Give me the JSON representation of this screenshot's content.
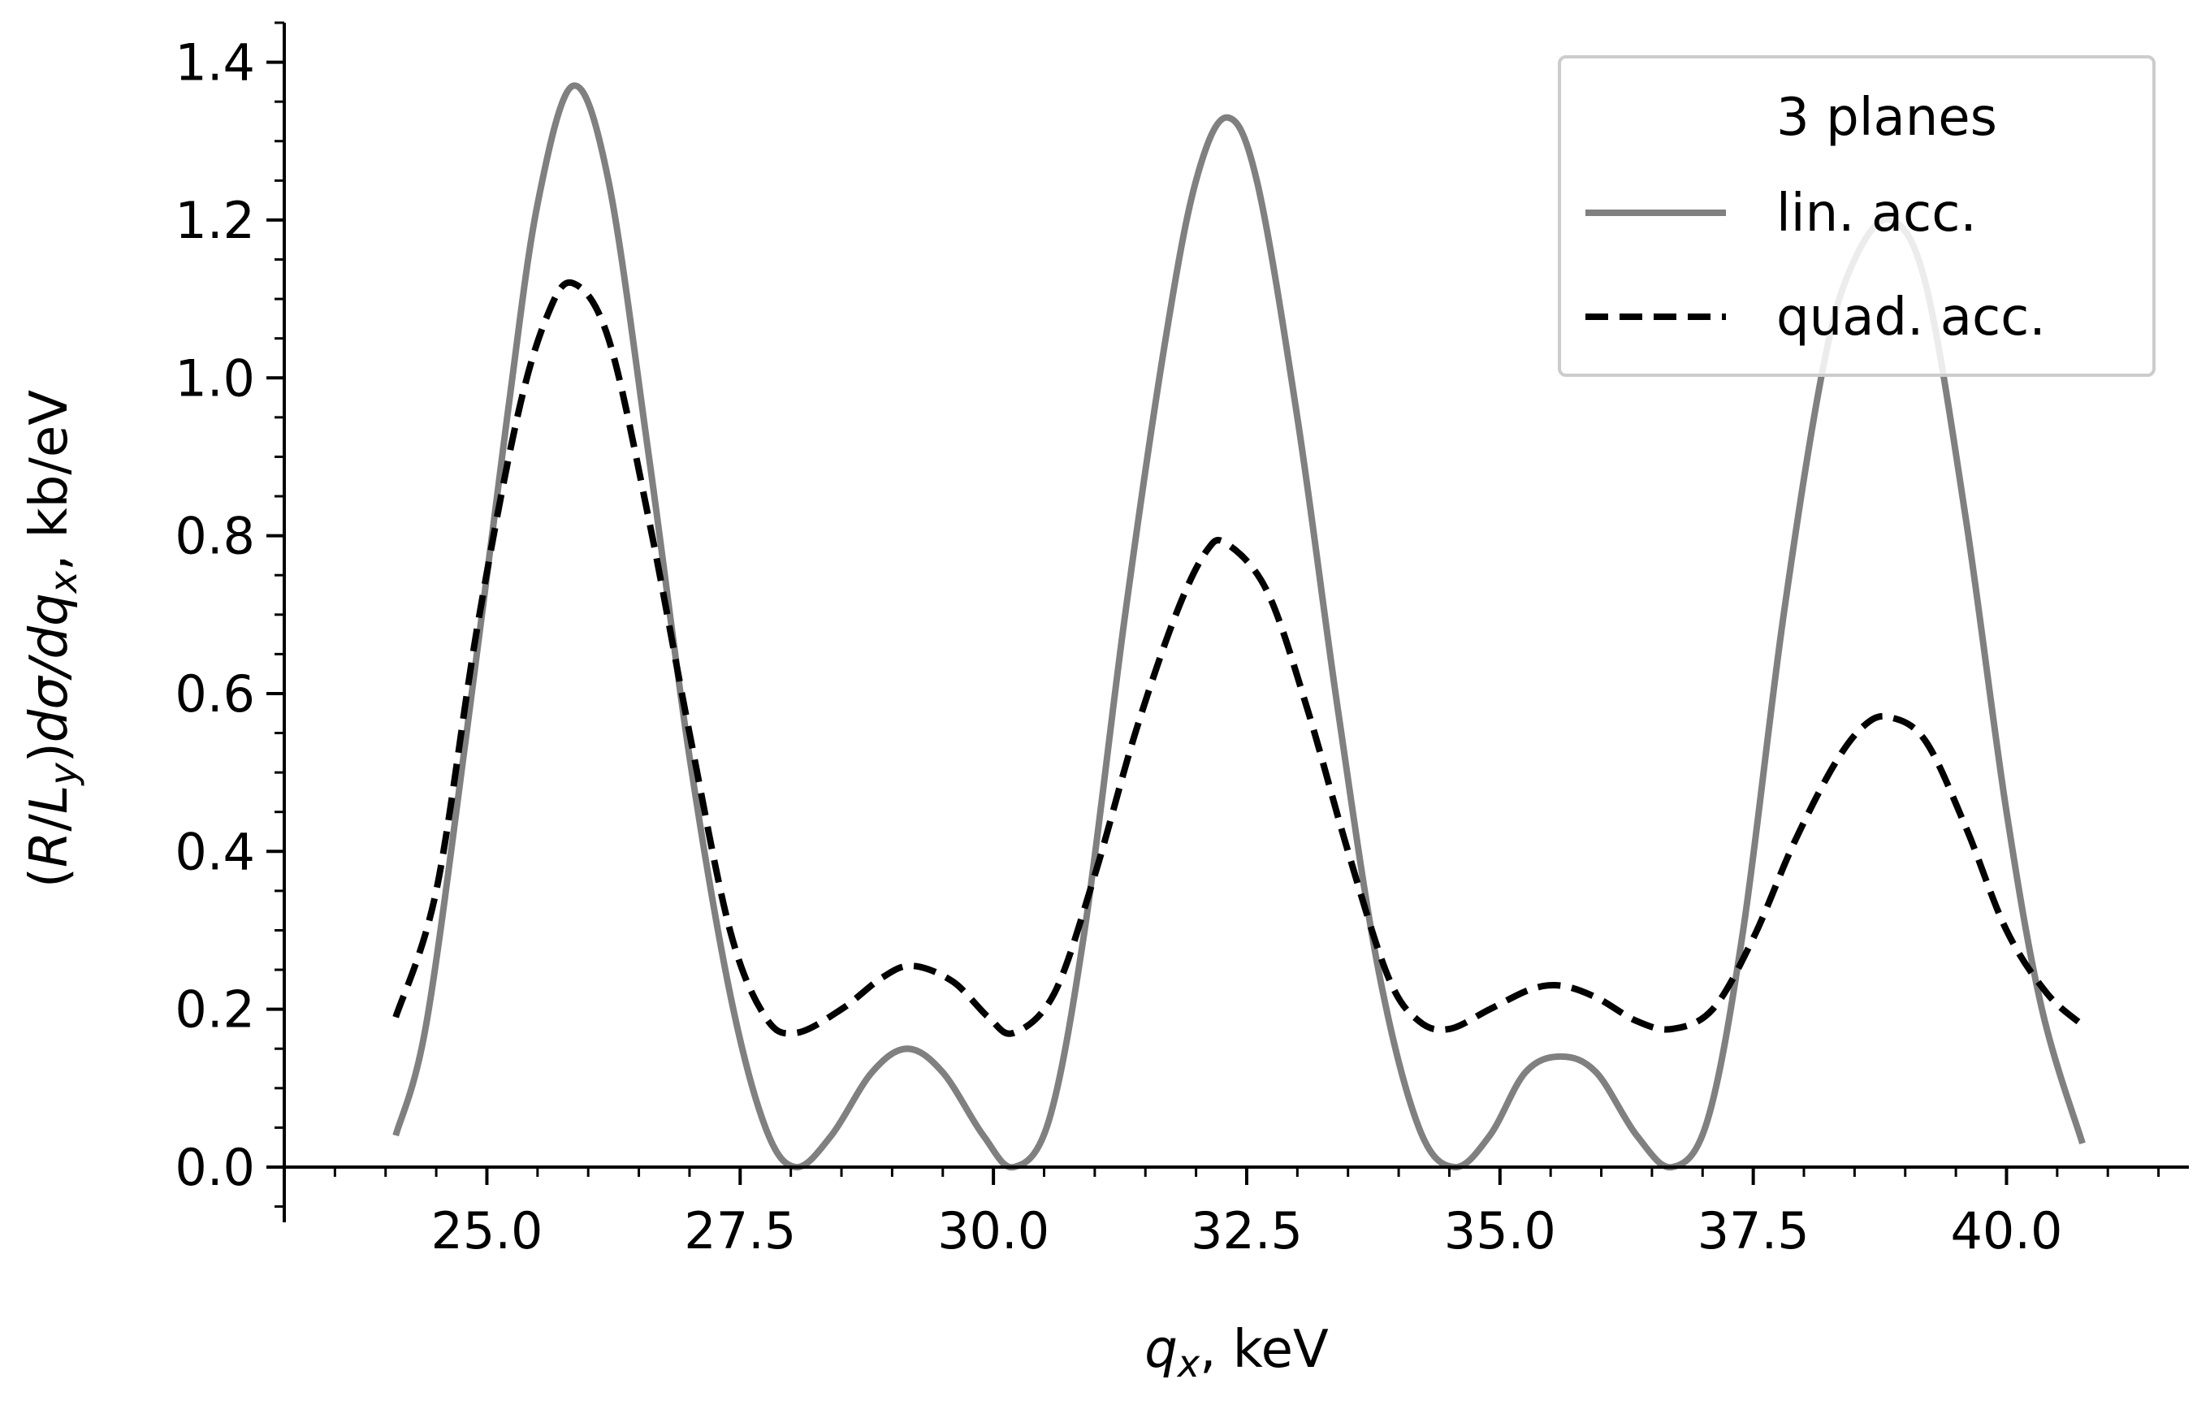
{
  "chart_data": {
    "type": "line",
    "title": "",
    "xlabel": {
      "var": "q",
      "sub": "x",
      "rest": ", keV"
    },
    "ylabel": {
      "parts": [
        {
          "t": "(",
          "s": "n"
        },
        {
          "t": "R",
          "s": "i"
        },
        {
          "t": "/",
          "s": "n"
        },
        {
          "t": "L",
          "s": "i"
        },
        {
          "t": "y",
          "s": "sub"
        },
        {
          "t": ")",
          "s": "n"
        },
        {
          "t": "dσ/dq",
          "s": "i"
        },
        {
          "t": "x",
          "s": "sub"
        },
        {
          "t": ", kb/eV",
          "s": "n"
        }
      ]
    },
    "xlim": [
      23.0,
      41.8
    ],
    "ylim": [
      -0.07,
      1.45
    ],
    "x_ticks": [
      25.0,
      27.5,
      30.0,
      32.5,
      35.0,
      37.5,
      40.0
    ],
    "x_tick_labels": [
      "25.0",
      "27.5",
      "30.0",
      "32.5",
      "35.0",
      "37.5",
      "40.0"
    ],
    "y_ticks": [
      0.0,
      0.2,
      0.4,
      0.6,
      0.8,
      1.0,
      1.2,
      1.4
    ],
    "y_tick_labels": [
      "0.0",
      "0.2",
      "0.4",
      "0.6",
      "0.8",
      "1.0",
      "1.2",
      "1.4"
    ],
    "grid": false,
    "legend": {
      "placement": "top-right",
      "title": "3 planes",
      "entries": [
        "lin. acc.",
        "quad. acc."
      ]
    },
    "series": [
      {
        "name": "lin. acc.",
        "color": "#808080",
        "style": "solid",
        "points": [
          [
            24.1,
            0.04
          ],
          [
            24.4,
            0.18
          ],
          [
            24.8,
            0.55
          ],
          [
            25.2,
            0.95
          ],
          [
            25.5,
            1.22
          ],
          [
            25.85,
            1.37
          ],
          [
            26.2,
            1.25
          ],
          [
            26.6,
            0.9
          ],
          [
            27.0,
            0.52
          ],
          [
            27.4,
            0.22
          ],
          [
            27.75,
            0.05
          ],
          [
            28.05,
            0.0
          ],
          [
            28.4,
            0.04
          ],
          [
            28.8,
            0.12
          ],
          [
            29.15,
            0.15
          ],
          [
            29.5,
            0.12
          ],
          [
            29.9,
            0.04
          ],
          [
            30.2,
            0.0
          ],
          [
            30.55,
            0.06
          ],
          [
            30.9,
            0.3
          ],
          [
            31.3,
            0.7
          ],
          [
            31.7,
            1.05
          ],
          [
            32.0,
            1.25
          ],
          [
            32.3,
            1.33
          ],
          [
            32.6,
            1.25
          ],
          [
            33.0,
            0.95
          ],
          [
            33.4,
            0.58
          ],
          [
            33.8,
            0.25
          ],
          [
            34.2,
            0.05
          ],
          [
            34.55,
            0.0
          ],
          [
            34.9,
            0.04
          ],
          [
            35.25,
            0.12
          ],
          [
            35.6,
            0.14
          ],
          [
            35.95,
            0.12
          ],
          [
            36.35,
            0.04
          ],
          [
            36.7,
            0.0
          ],
          [
            37.05,
            0.06
          ],
          [
            37.4,
            0.3
          ],
          [
            37.8,
            0.7
          ],
          [
            38.2,
            1.02
          ],
          [
            38.5,
            1.15
          ],
          [
            38.85,
            1.2
          ],
          [
            39.2,
            1.12
          ],
          [
            39.6,
            0.82
          ],
          [
            40.0,
            0.45
          ],
          [
            40.35,
            0.2
          ],
          [
            40.75,
            0.03
          ]
        ]
      },
      {
        "name": "quad. acc.",
        "color": "#000000",
        "style": "dashed",
        "points": [
          [
            24.1,
            0.19
          ],
          [
            24.5,
            0.35
          ],
          [
            24.9,
            0.68
          ],
          [
            25.3,
            0.95
          ],
          [
            25.6,
            1.08
          ],
          [
            25.85,
            1.12
          ],
          [
            26.2,
            1.05
          ],
          [
            26.6,
            0.82
          ],
          [
            27.0,
            0.55
          ],
          [
            27.4,
            0.3
          ],
          [
            27.75,
            0.19
          ],
          [
            28.05,
            0.17
          ],
          [
            28.5,
            0.2
          ],
          [
            28.9,
            0.24
          ],
          [
            29.2,
            0.255
          ],
          [
            29.6,
            0.235
          ],
          [
            29.95,
            0.19
          ],
          [
            30.2,
            0.17
          ],
          [
            30.6,
            0.22
          ],
          [
            31.0,
            0.37
          ],
          [
            31.4,
            0.55
          ],
          [
            31.8,
            0.7
          ],
          [
            32.1,
            0.78
          ],
          [
            32.3,
            0.79
          ],
          [
            32.7,
            0.73
          ],
          [
            33.1,
            0.58
          ],
          [
            33.5,
            0.4
          ],
          [
            33.9,
            0.24
          ],
          [
            34.2,
            0.185
          ],
          [
            34.5,
            0.175
          ],
          [
            34.9,
            0.2
          ],
          [
            35.3,
            0.225
          ],
          [
            35.6,
            0.23
          ],
          [
            35.95,
            0.215
          ],
          [
            36.35,
            0.185
          ],
          [
            36.7,
            0.175
          ],
          [
            37.1,
            0.2
          ],
          [
            37.5,
            0.29
          ],
          [
            37.9,
            0.41
          ],
          [
            38.3,
            0.51
          ],
          [
            38.6,
            0.56
          ],
          [
            38.85,
            0.57
          ],
          [
            39.2,
            0.54
          ],
          [
            39.6,
            0.43
          ],
          [
            40.0,
            0.3
          ],
          [
            40.4,
            0.22
          ],
          [
            40.75,
            0.18
          ]
        ]
      }
    ]
  }
}
